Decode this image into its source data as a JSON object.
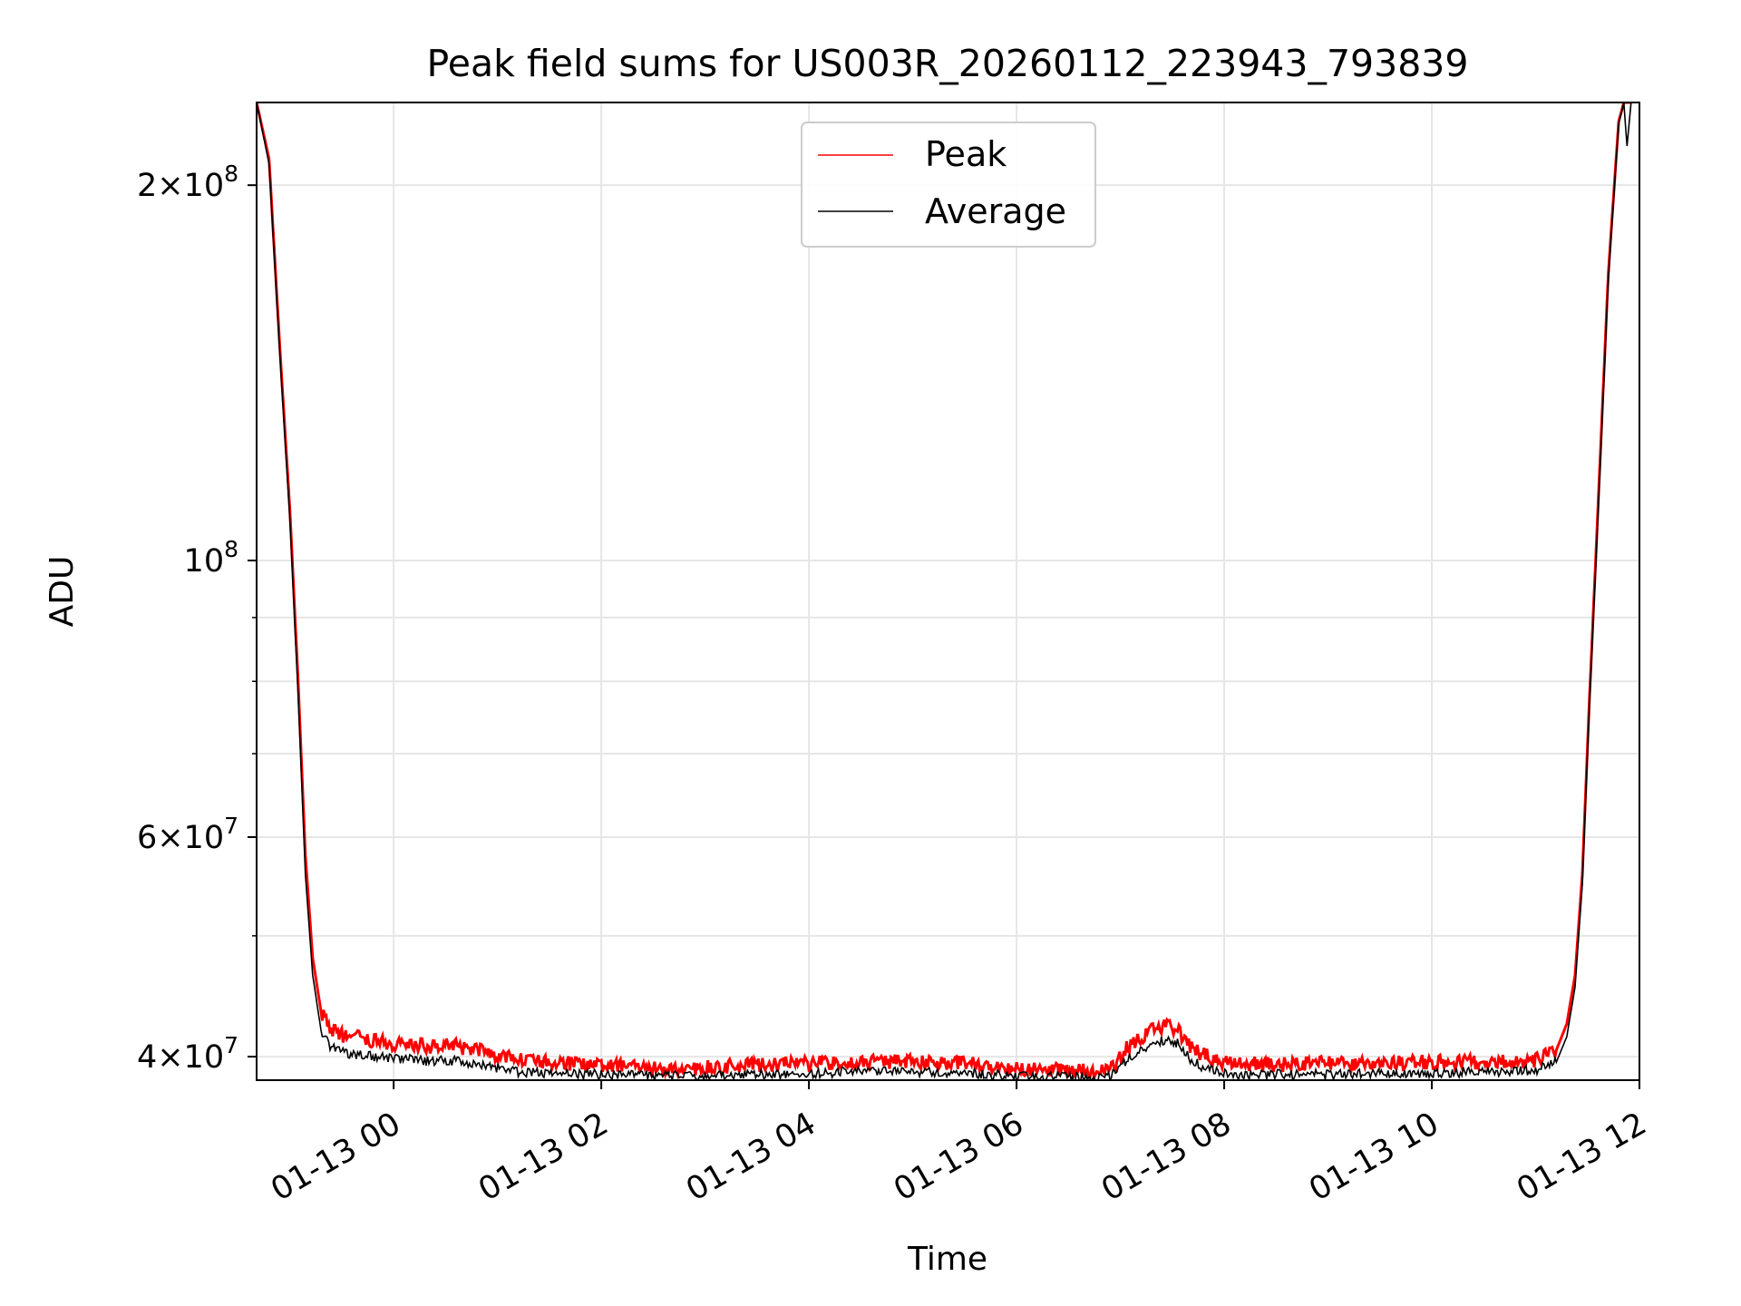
{
  "chart_data": {
    "type": "line",
    "title": "Peak field sums for US003R_20260112_223943_793839",
    "xlabel": "Time",
    "ylabel": "ADU",
    "y_scale": "log",
    "ylim": [
      38300000,
      233000000
    ],
    "xlim_hours": [
      -1.32,
      12.0
    ],
    "grid": true,
    "legend_location": "upper-center",
    "x_ticks": [
      {
        "hour": 0,
        "label": "01-13 00"
      },
      {
        "hour": 2,
        "label": "01-13 02"
      },
      {
        "hour": 4,
        "label": "01-13 04"
      },
      {
        "hour": 6,
        "label": "01-13 06"
      },
      {
        "hour": 8,
        "label": "01-13 08"
      },
      {
        "hour": 10,
        "label": "01-13 10"
      },
      {
        "hour": 12,
        "label": "01-13 12"
      }
    ],
    "y_ticks": [
      {
        "value": 40000000,
        "mantissa": "4",
        "exp": "7"
      },
      {
        "value": 60000000,
        "mantissa": "6",
        "exp": "7"
      },
      {
        "value": 100000000,
        "mantissa": "",
        "exp": "8"
      },
      {
        "value": 200000000,
        "mantissa": "2",
        "exp": "8"
      }
    ],
    "y_minor_ticks": [
      50000000,
      70000000,
      80000000,
      90000000
    ],
    "series": [
      {
        "name": "Peak",
        "color": "#ff0000",
        "x_hours": [
          -1.32,
          -1.2,
          -1.1,
          -1.0,
          -0.92,
          -0.85,
          -0.78,
          -0.7,
          -0.6,
          -0.5,
          -0.4,
          -0.2,
          0.0,
          0.3,
          0.6,
          0.9,
          1.2,
          1.5,
          2.0,
          2.5,
          3.0,
          3.5,
          4.0,
          4.5,
          5.0,
          5.5,
          6.0,
          6.5,
          6.9,
          7.1,
          7.3,
          7.45,
          7.55,
          7.7,
          7.9,
          8.1,
          8.5,
          9.0,
          9.5,
          10.0,
          10.5,
          11.0,
          11.2,
          11.3,
          11.38,
          11.45,
          11.52,
          11.6,
          11.7,
          11.8,
          11.85,
          11.88,
          11.92
        ],
        "values": [
          233000000,
          210000000,
          150000000,
          110000000,
          80000000,
          58000000,
          48000000,
          43500000,
          42000000,
          41600000,
          41500000,
          41200000,
          41000000,
          40800000,
          40800000,
          40300000,
          39800000,
          39600000,
          39400000,
          39100000,
          39200000,
          39400000,
          39500000,
          39600000,
          39600000,
          39500000,
          39100000,
          39000000,
          39000000,
          41000000,
          42000000,
          42400000,
          42000000,
          40500000,
          39800000,
          39500000,
          39400000,
          39500000,
          39500000,
          39600000,
          39600000,
          39700000,
          40500000,
          42500000,
          46500000,
          56000000,
          78000000,
          110000000,
          170000000,
          225000000,
          233000000,
          233000000,
          233000000
        ]
      },
      {
        "name": "Average",
        "color": "#000000",
        "x_hours": [
          -1.32,
          -1.2,
          -1.1,
          -1.0,
          -0.92,
          -0.85,
          -0.78,
          -0.7,
          -0.6,
          -0.5,
          -0.4,
          -0.2,
          0.0,
          0.3,
          0.6,
          0.9,
          1.2,
          1.5,
          2.0,
          2.5,
          3.0,
          3.5,
          4.0,
          4.5,
          5.0,
          5.5,
          6.0,
          6.5,
          6.9,
          7.1,
          7.3,
          7.45,
          7.55,
          7.7,
          7.9,
          8.1,
          8.5,
          9.0,
          9.5,
          10.0,
          10.5,
          11.0,
          11.2,
          11.3,
          11.38,
          11.45,
          11.52,
          11.6,
          11.7,
          11.8,
          11.85,
          11.88,
          11.92
        ],
        "values": [
          233000000,
          208000000,
          148000000,
          108000000,
          78000000,
          56000000,
          46500000,
          42000000,
          40700000,
          40300000,
          40200000,
          40000000,
          39900000,
          39700000,
          39700000,
          39300000,
          38900000,
          38800000,
          38700000,
          38600000,
          38600000,
          38700000,
          38800000,
          38900000,
          38900000,
          38800000,
          38600000,
          38500000,
          38600000,
          40000000,
          41000000,
          41300000,
          41000000,
          39600000,
          38900000,
          38700000,
          38700000,
          38700000,
          38800000,
          38800000,
          38900000,
          39000000,
          39600000,
          41500000,
          45500000,
          55000000,
          77000000,
          108000000,
          168000000,
          224000000,
          233000000,
          215000000,
          233000000
        ]
      }
    ]
  }
}
